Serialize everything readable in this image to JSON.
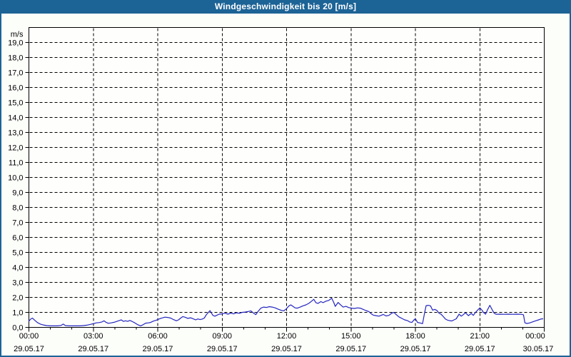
{
  "window": {
    "title": "Windgeschwindigkeit bis 20 [m/s]"
  },
  "colors": {
    "titlebar_bg": "#1c6396",
    "frame": "#1c6396",
    "title_text": "#ffffff",
    "content_bg": "#fcfefa",
    "plot_bg": "#fefffc",
    "grid": "#000000",
    "axis": "#000000",
    "label_text": "#000000",
    "series_line": "#2424c0"
  },
  "chart_data": {
    "type": "line",
    "title": "Windgeschwindigkeit bis 20 [m/s]",
    "ylabel": "m/s",
    "xlabel": "",
    "ylim": [
      0,
      20
    ],
    "xlim_minutes": [
      0,
      1440
    ],
    "grid": "dashed",
    "legend_position": "none",
    "y_ticks": [
      {
        "value": 0,
        "label": "0,0"
      },
      {
        "value": 1,
        "label": "1,0"
      },
      {
        "value": 2,
        "label": "2,0"
      },
      {
        "value": 3,
        "label": "3,0"
      },
      {
        "value": 4,
        "label": "4,0"
      },
      {
        "value": 5,
        "label": "5,0"
      },
      {
        "value": 6,
        "label": "6,0"
      },
      {
        "value": 7,
        "label": "7,0"
      },
      {
        "value": 8,
        "label": "8,0"
      },
      {
        "value": 9,
        "label": "9,0"
      },
      {
        "value": 10,
        "label": "10,0"
      },
      {
        "value": 11,
        "label": "11,0"
      },
      {
        "value": 12,
        "label": "12,0"
      },
      {
        "value": 13,
        "label": "13,0"
      },
      {
        "value": 14,
        "label": "14,0"
      },
      {
        "value": 15,
        "label": "15,0"
      },
      {
        "value": 16,
        "label": "16,0"
      },
      {
        "value": 17,
        "label": "17,0"
      },
      {
        "value": 18,
        "label": "18,0"
      },
      {
        "value": 19,
        "label": "19,0"
      }
    ],
    "y_axis_unit": "m/s",
    "x_ticks": [
      {
        "minutes": 0,
        "time": "00:00",
        "date": "29.05.17"
      },
      {
        "minutes": 180,
        "time": "03:00",
        "date": "29.05.17"
      },
      {
        "minutes": 360,
        "time": "06:00",
        "date": "29.05.17"
      },
      {
        "minutes": 540,
        "time": "09:00",
        "date": "29.05.17"
      },
      {
        "minutes": 720,
        "time": "12:00",
        "date": "29.05.17"
      },
      {
        "minutes": 900,
        "time": "15:00",
        "date": "29.05.17"
      },
      {
        "minutes": 1080,
        "time": "18:00",
        "date": "29.05.17"
      },
      {
        "minutes": 1260,
        "time": "21:00",
        "date": "29.05.17"
      },
      {
        "minutes": 1440,
        "time": "00:00",
        "date": "30.05.17"
      }
    ],
    "minor_x_tick_minutes": 60,
    "series": [
      {
        "name": "Windgeschwindigkeit",
        "unit": "m/s",
        "color": "#2424c0",
        "points": [
          [
            0,
            0.42
          ],
          [
            5,
            0.55
          ],
          [
            10,
            0.62
          ],
          [
            16,
            0.48
          ],
          [
            24,
            0.32
          ],
          [
            32,
            0.22
          ],
          [
            40,
            0.16
          ],
          [
            50,
            0.12
          ],
          [
            60,
            0.1
          ],
          [
            70,
            0.1
          ],
          [
            80,
            0.1
          ],
          [
            90,
            0.13
          ],
          [
            96,
            0.22
          ],
          [
            102,
            0.12
          ],
          [
            112,
            0.1
          ],
          [
            122,
            0.1
          ],
          [
            132,
            0.1
          ],
          [
            142,
            0.1
          ],
          [
            152,
            0.12
          ],
          [
            162,
            0.15
          ],
          [
            172,
            0.2
          ],
          [
            180,
            0.25
          ],
          [
            188,
            0.3
          ],
          [
            196,
            0.32
          ],
          [
            204,
            0.36
          ],
          [
            210,
            0.44
          ],
          [
            216,
            0.33
          ],
          [
            222,
            0.27
          ],
          [
            230,
            0.3
          ],
          [
            238,
            0.34
          ],
          [
            246,
            0.4
          ],
          [
            252,
            0.45
          ],
          [
            258,
            0.5
          ],
          [
            264,
            0.4
          ],
          [
            270,
            0.44
          ],
          [
            276,
            0.4
          ],
          [
            282,
            0.46
          ],
          [
            288,
            0.4
          ],
          [
            296,
            0.3
          ],
          [
            304,
            0.18
          ],
          [
            312,
            0.1
          ],
          [
            318,
            0.16
          ],
          [
            326,
            0.28
          ],
          [
            334,
            0.3
          ],
          [
            340,
            0.33
          ],
          [
            348,
            0.42
          ],
          [
            356,
            0.48
          ],
          [
            360,
            0.52
          ],
          [
            368,
            0.6
          ],
          [
            374,
            0.64
          ],
          [
            380,
            0.68
          ],
          [
            388,
            0.66
          ],
          [
            396,
            0.62
          ],
          [
            404,
            0.52
          ],
          [
            412,
            0.44
          ],
          [
            418,
            0.5
          ],
          [
            424,
            0.62
          ],
          [
            430,
            0.72
          ],
          [
            436,
            0.68
          ],
          [
            444,
            0.6
          ],
          [
            452,
            0.64
          ],
          [
            460,
            0.56
          ],
          [
            466,
            0.5
          ],
          [
            472,
            0.56
          ],
          [
            478,
            0.52
          ],
          [
            484,
            0.55
          ],
          [
            490,
            0.62
          ],
          [
            496,
            0.85
          ],
          [
            506,
            1.12
          ],
          [
            514,
            0.8
          ],
          [
            520,
            0.75
          ],
          [
            526,
            0.82
          ],
          [
            532,
            0.88
          ],
          [
            540,
            0.9
          ],
          [
            548,
            0.95
          ],
          [
            556,
            0.88
          ],
          [
            564,
            0.95
          ],
          [
            572,
            0.9
          ],
          [
            580,
            0.97
          ],
          [
            588,
            0.94
          ],
          [
            596,
            1.0
          ],
          [
            604,
            1.02
          ],
          [
            612,
            1.05
          ],
          [
            620,
            1.1
          ],
          [
            628,
            0.95
          ],
          [
            634,
            0.85
          ],
          [
            640,
            1.05
          ],
          [
            648,
            1.28
          ],
          [
            656,
            1.35
          ],
          [
            664,
            1.33
          ],
          [
            672,
            1.38
          ],
          [
            680,
            1.35
          ],
          [
            688,
            1.3
          ],
          [
            696,
            1.22
          ],
          [
            704,
            1.15
          ],
          [
            712,
            1.1
          ],
          [
            720,
            1.25
          ],
          [
            726,
            1.42
          ],
          [
            732,
            1.5
          ],
          [
            738,
            1.4
          ],
          [
            744,
            1.3
          ],
          [
            750,
            1.28
          ],
          [
            758,
            1.35
          ],
          [
            766,
            1.44
          ],
          [
            774,
            1.5
          ],
          [
            782,
            1.6
          ],
          [
            790,
            1.75
          ],
          [
            796,
            1.87
          ],
          [
            802,
            1.65
          ],
          [
            808,
            1.6
          ],
          [
            816,
            1.72
          ],
          [
            822,
            1.65
          ],
          [
            830,
            1.75
          ],
          [
            838,
            1.8
          ],
          [
            846,
            1.95
          ],
          [
            852,
            1.65
          ],
          [
            856,
            1.4
          ],
          [
            864,
            1.66
          ],
          [
            870,
            1.52
          ],
          [
            878,
            1.35
          ],
          [
            886,
            1.4
          ],
          [
            894,
            1.32
          ],
          [
            902,
            1.28
          ],
          [
            910,
            1.26
          ],
          [
            918,
            1.3
          ],
          [
            926,
            1.28
          ],
          [
            934,
            1.2
          ],
          [
            942,
            1.12
          ],
          [
            950,
            1.05
          ],
          [
            956,
            0.92
          ],
          [
            962,
            0.82
          ],
          [
            970,
            0.78
          ],
          [
            978,
            0.75
          ],
          [
            984,
            0.8
          ],
          [
            990,
            0.86
          ],
          [
            998,
            0.76
          ],
          [
            1006,
            0.8
          ],
          [
            1014,
            0.95
          ],
          [
            1020,
            1.0
          ],
          [
            1026,
            0.86
          ],
          [
            1034,
            0.7
          ],
          [
            1042,
            0.6
          ],
          [
            1050,
            0.5
          ],
          [
            1058,
            0.45
          ],
          [
            1064,
            0.36
          ],
          [
            1070,
            0.33
          ],
          [
            1076,
            0.5
          ],
          [
            1080,
            0.57
          ],
          [
            1086,
            0.33
          ],
          [
            1092,
            0.3
          ],
          [
            1100,
            0.25
          ],
          [
            1106,
            1.0
          ],
          [
            1110,
            1.45
          ],
          [
            1116,
            1.47
          ],
          [
            1122,
            1.44
          ],
          [
            1128,
            1.15
          ],
          [
            1134,
            1.2
          ],
          [
            1140,
            1.13
          ],
          [
            1146,
            0.95
          ],
          [
            1152,
            0.87
          ],
          [
            1158,
            0.72
          ],
          [
            1164,
            0.55
          ],
          [
            1170,
            0.48
          ],
          [
            1176,
            0.45
          ],
          [
            1182,
            0.43
          ],
          [
            1188,
            0.5
          ],
          [
            1194,
            0.57
          ],
          [
            1202,
            0.88
          ],
          [
            1208,
            0.75
          ],
          [
            1214,
            0.85
          ],
          [
            1220,
            0.97
          ],
          [
            1228,
            0.78
          ],
          [
            1236,
            0.93
          ],
          [
            1242,
            0.8
          ],
          [
            1248,
            1.0
          ],
          [
            1256,
            1.2
          ],
          [
            1260,
            1.3
          ],
          [
            1266,
            1.15
          ],
          [
            1270,
            1.0
          ],
          [
            1276,
            0.88
          ],
          [
            1282,
            1.2
          ],
          [
            1288,
            1.47
          ],
          [
            1294,
            1.2
          ],
          [
            1300,
            0.95
          ],
          [
            1306,
            0.87
          ],
          [
            1316,
            0.88
          ],
          [
            1328,
            0.87
          ],
          [
            1340,
            0.88
          ],
          [
            1352,
            0.87
          ],
          [
            1364,
            0.88
          ],
          [
            1376,
            0.87
          ],
          [
            1382,
            0.84
          ],
          [
            1386,
            0.3
          ],
          [
            1392,
            0.26
          ],
          [
            1400,
            0.3
          ],
          [
            1408,
            0.37
          ],
          [
            1416,
            0.44
          ],
          [
            1424,
            0.5
          ],
          [
            1430,
            0.55
          ],
          [
            1436,
            0.57
          ]
        ]
      }
    ]
  }
}
